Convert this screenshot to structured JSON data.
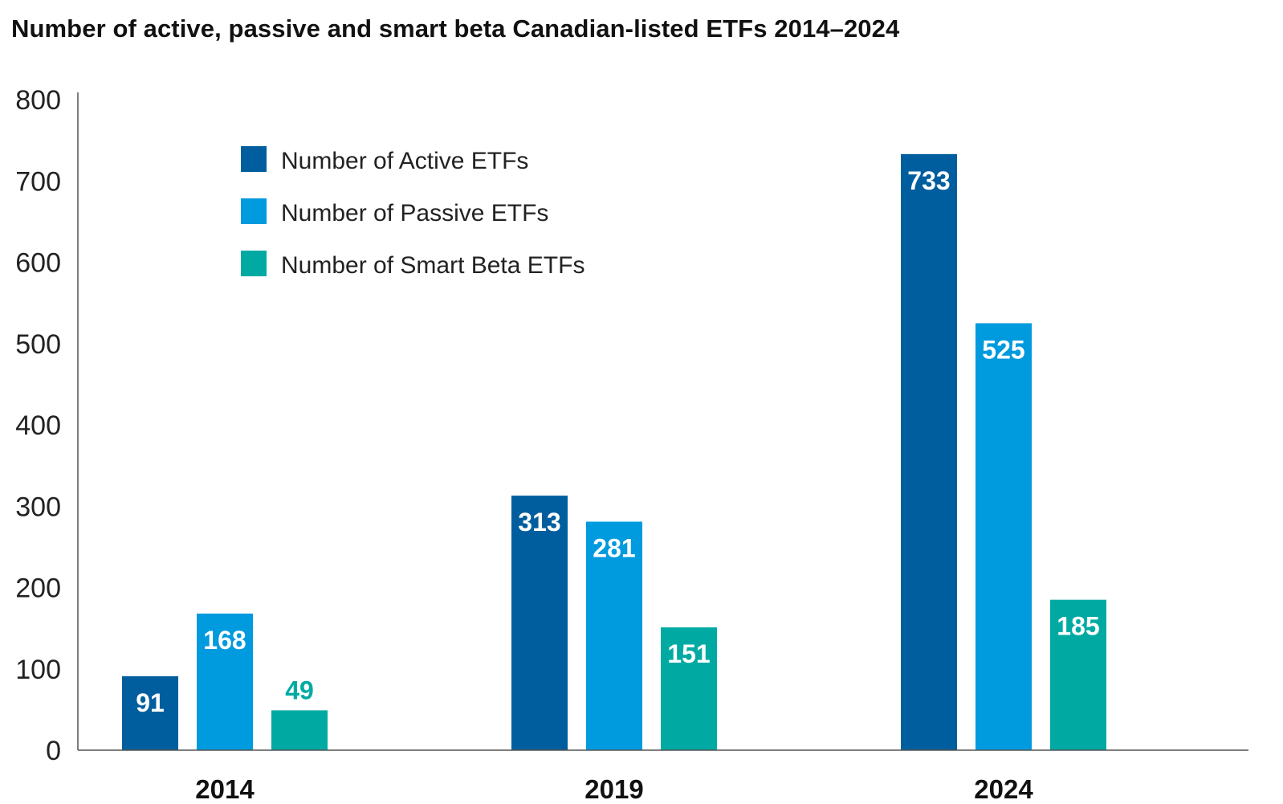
{
  "chart_data": {
    "type": "bar",
    "title": "Number of active, passive and smart beta Canadian-listed ETFs 2014–2024",
    "xlabel": "",
    "ylabel": "",
    "ylim": [
      0,
      800
    ],
    "yticks": [
      "0",
      "100",
      "200",
      "300",
      "400",
      "500",
      "600",
      "700",
      "800"
    ],
    "categories": [
      "2014",
      "2019",
      "2024"
    ],
    "legend_position": "top-left",
    "grid": false,
    "series": [
      {
        "name": "Number of Active ETFs",
        "color": "#005e9e",
        "values": [
          91,
          313,
          733
        ],
        "labels": [
          "91",
          "313",
          "733"
        ]
      },
      {
        "name": "Number of Passive ETFs",
        "color": "#009ade",
        "values": [
          168,
          281,
          525
        ],
        "labels": [
          "168",
          "281",
          "525"
        ]
      },
      {
        "name": "Number of Smart Beta ETFs",
        "color": "#00aaa3",
        "values": [
          49,
          151,
          185
        ],
        "labels": [
          "49",
          "151",
          "185"
        ]
      }
    ]
  }
}
